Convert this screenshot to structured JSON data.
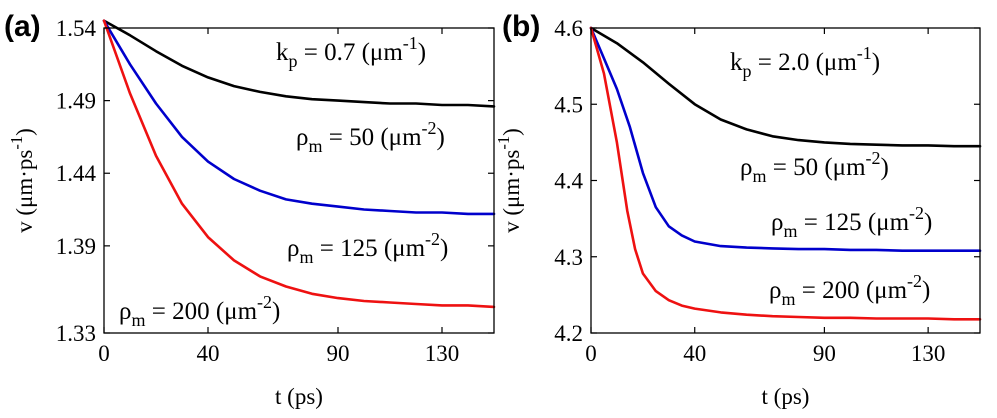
{
  "chart_data": [
    {
      "type": "line",
      "panel_label": "(a)",
      "xlabel": "t (ps)",
      "ylabel": "v (μm·ps⁻¹)",
      "xlim": [
        0,
        150
      ],
      "ylim": [
        1.33,
        1.54
      ],
      "xticks": [
        "0",
        "40",
        "90",
        "130"
      ],
      "xtick_values": [
        0,
        40,
        90,
        130
      ],
      "yticks": [
        "1.33",
        "1.39",
        "1.44",
        "1.49",
        "1.54"
      ],
      "ytick_values": [
        1.33,
        1.39,
        1.44,
        1.49,
        1.54
      ],
      "param_label": "k_p = 0.7 (μm⁻¹)",
      "series": [
        {
          "name": "ρm = 50 (μm⁻²)",
          "color": "#000000",
          "x": [
            0,
            10,
            20,
            30,
            40,
            50,
            60,
            70,
            80,
            90,
            100,
            110,
            120,
            130,
            140,
            150
          ],
          "y": [
            1.545,
            1.535,
            1.524,
            1.514,
            1.506,
            1.5,
            1.496,
            1.493,
            1.491,
            1.49,
            1.489,
            1.488,
            1.488,
            1.487,
            1.487,
            1.486
          ]
        },
        {
          "name": "ρm = 125 (μm⁻²)",
          "color": "#0000cc",
          "x": [
            0,
            10,
            20,
            30,
            40,
            50,
            60,
            70,
            80,
            90,
            100,
            110,
            120,
            130,
            140,
            150
          ],
          "y": [
            1.545,
            1.515,
            1.488,
            1.465,
            1.448,
            1.436,
            1.428,
            1.422,
            1.419,
            1.417,
            1.415,
            1.414,
            1.413,
            1.413,
            1.412,
            1.412
          ]
        },
        {
          "name": "ρm = 200 (μm⁻²)",
          "color": "#ee1111",
          "x": [
            0,
            10,
            20,
            30,
            40,
            50,
            60,
            70,
            80,
            90,
            100,
            110,
            120,
            130,
            140,
            150
          ],
          "y": [
            1.545,
            1.495,
            1.452,
            1.419,
            1.396,
            1.38,
            1.369,
            1.362,
            1.357,
            1.354,
            1.352,
            1.351,
            1.35,
            1.349,
            1.349,
            1.348
          ]
        }
      ]
    },
    {
      "type": "line",
      "panel_label": "(b)",
      "xlabel": "t (ps)",
      "ylabel": "v (μm·ps⁻¹)",
      "xlim": [
        0,
        150
      ],
      "ylim": [
        4.2,
        4.6
      ],
      "xticks": [
        "0",
        "40",
        "90",
        "130"
      ],
      "xtick_values": [
        0,
        40,
        90,
        130
      ],
      "yticks": [
        "4.2",
        "4.3",
        "4.4",
        "4.5",
        "4.6"
      ],
      "ytick_values": [
        4.2,
        4.3,
        4.4,
        4.5,
        4.6
      ],
      "param_label": "k_p = 2.0 (μm⁻¹)",
      "series": [
        {
          "name": "ρm = 50 (μm⁻²)",
          "color": "#000000",
          "x": [
            0,
            10,
            20,
            30,
            40,
            50,
            60,
            70,
            80,
            90,
            100,
            110,
            120,
            130,
            140,
            150
          ],
          "y": [
            4.6,
            4.58,
            4.555,
            4.527,
            4.5,
            4.48,
            4.467,
            4.458,
            4.453,
            4.45,
            4.448,
            4.447,
            4.446,
            4.446,
            4.445,
            4.445
          ]
        },
        {
          "name": "ρm = 125 (μm⁻²)",
          "color": "#0000cc",
          "x": [
            0,
            5,
            10,
            15,
            20,
            25,
            30,
            35,
            40,
            50,
            60,
            70,
            80,
            90,
            100,
            110,
            120,
            130,
            140,
            150
          ],
          "y": [
            4.6,
            4.56,
            4.52,
            4.47,
            4.41,
            4.365,
            4.34,
            4.328,
            4.32,
            4.314,
            4.312,
            4.311,
            4.31,
            4.31,
            4.309,
            4.309,
            4.308,
            4.308,
            4.308,
            4.308
          ]
        },
        {
          "name": "ρm = 200 (μm⁻²)",
          "color": "#ee1111",
          "x": [
            0,
            5,
            10,
            14,
            17,
            20,
            25,
            30,
            35,
            40,
            50,
            60,
            70,
            80,
            90,
            100,
            110,
            120,
            130,
            140,
            150
          ],
          "y": [
            4.6,
            4.54,
            4.45,
            4.36,
            4.31,
            4.278,
            4.255,
            4.243,
            4.236,
            4.232,
            4.227,
            4.224,
            4.222,
            4.221,
            4.22,
            4.22,
            4.219,
            4.219,
            4.219,
            4.218,
            4.218
          ]
        }
      ]
    }
  ]
}
